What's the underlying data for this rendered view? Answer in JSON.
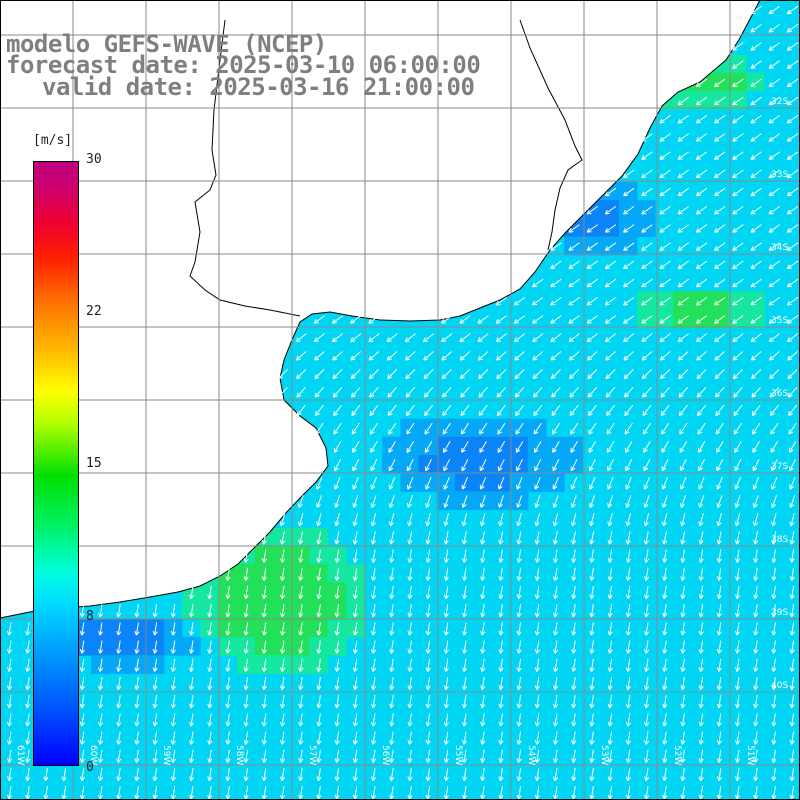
{
  "title": {
    "line1": "modelo GEFS-WAVE (NCEP)",
    "line2": "forecast date: 2025-03-10 06:00:00",
    "line3": "valid date: 2025-03-16 21:00:00"
  },
  "colorbar": {
    "unit": "[m/s]",
    "ticks": [
      "30",
      "22",
      "15",
      "8",
      "0"
    ],
    "colors": [
      "#0000ff",
      "#00a6ff",
      "#00ffdc",
      "#00e000",
      "#ffff00",
      "#ff7a00",
      "#ff2000",
      "#c00080"
    ]
  },
  "grid": {
    "lat_labels": [
      "32S",
      "33S",
      "34S",
      "35S",
      "36S",
      "37S",
      "38S",
      "39S",
      "40S"
    ],
    "lon_labels": [
      "61W",
      "60W",
      "59W",
      "58W",
      "57W",
      "56W",
      "55W",
      "54W",
      "53W",
      "52W",
      "51W"
    ]
  },
  "colors": {
    "land": "#ffffff",
    "coast": "#000000",
    "gridline": "#8a8a8a",
    "arrows": "#ffffff",
    "title_text": "#7f7f7f"
  }
}
